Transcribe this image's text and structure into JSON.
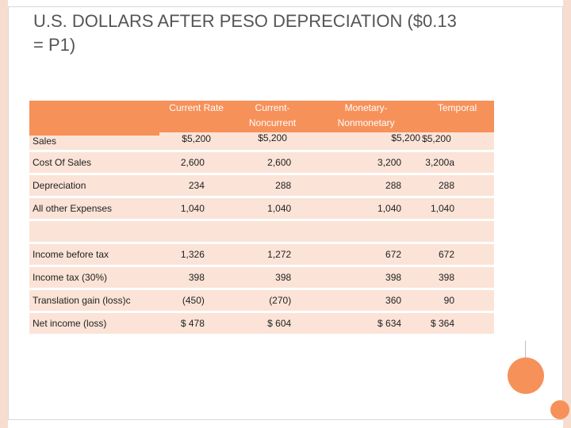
{
  "title_line1": "U.S. DOLLARS AFTER PESO DEPRECIATION ($0.13",
  "title_line2": "= P1)",
  "columns": {
    "current_rate": "Current Rate",
    "current_noncurrent_line1": "Current-",
    "current_noncurrent_line2": "Noncurrent",
    "monetary_line1": "Monetary-",
    "monetary_line2": "Nonmonetary",
    "temporal": "Temporal"
  },
  "sales": {
    "label": "Sales",
    "current_rate": "$5,200",
    "current_noncurrent": "$5,200",
    "monetary": "$5,200",
    "temporal": "$5,200"
  },
  "rows": [
    {
      "label": "Cost Of Sales",
      "v1": "2,600",
      "v2": "2,600",
      "v3": "3,200",
      "v4": "3,200a"
    },
    {
      "label": "Depreciation",
      "v1": "234",
      "v2": "288",
      "v3": "288",
      "v4": "288"
    },
    {
      "label": "All other Expenses",
      "v1": "1,040",
      "v2": "1,040",
      "v3": "1,040",
      "v4": "1,040"
    },
    {
      "label": "",
      "v1": "",
      "v2": "",
      "v3": "",
      "v4": ""
    },
    {
      "label": "Income before tax",
      "v1": "1,326",
      "v2": "1,272",
      "v3": "672",
      "v4": "672"
    },
    {
      "label": "Income tax (30%)",
      "v1": "398",
      "v2": "398",
      "v3": "398",
      "v4": "398"
    },
    {
      "label": "Translation gain (loss)c",
      "v1": "(450)",
      "v2": "(270)",
      "v3": "360",
      "v4": "90"
    },
    {
      "label": "Net income (loss)",
      "v1": "$ 478",
      "v2": "$ 604",
      "v3": "$ 634",
      "v4": "$ 364"
    }
  ]
}
